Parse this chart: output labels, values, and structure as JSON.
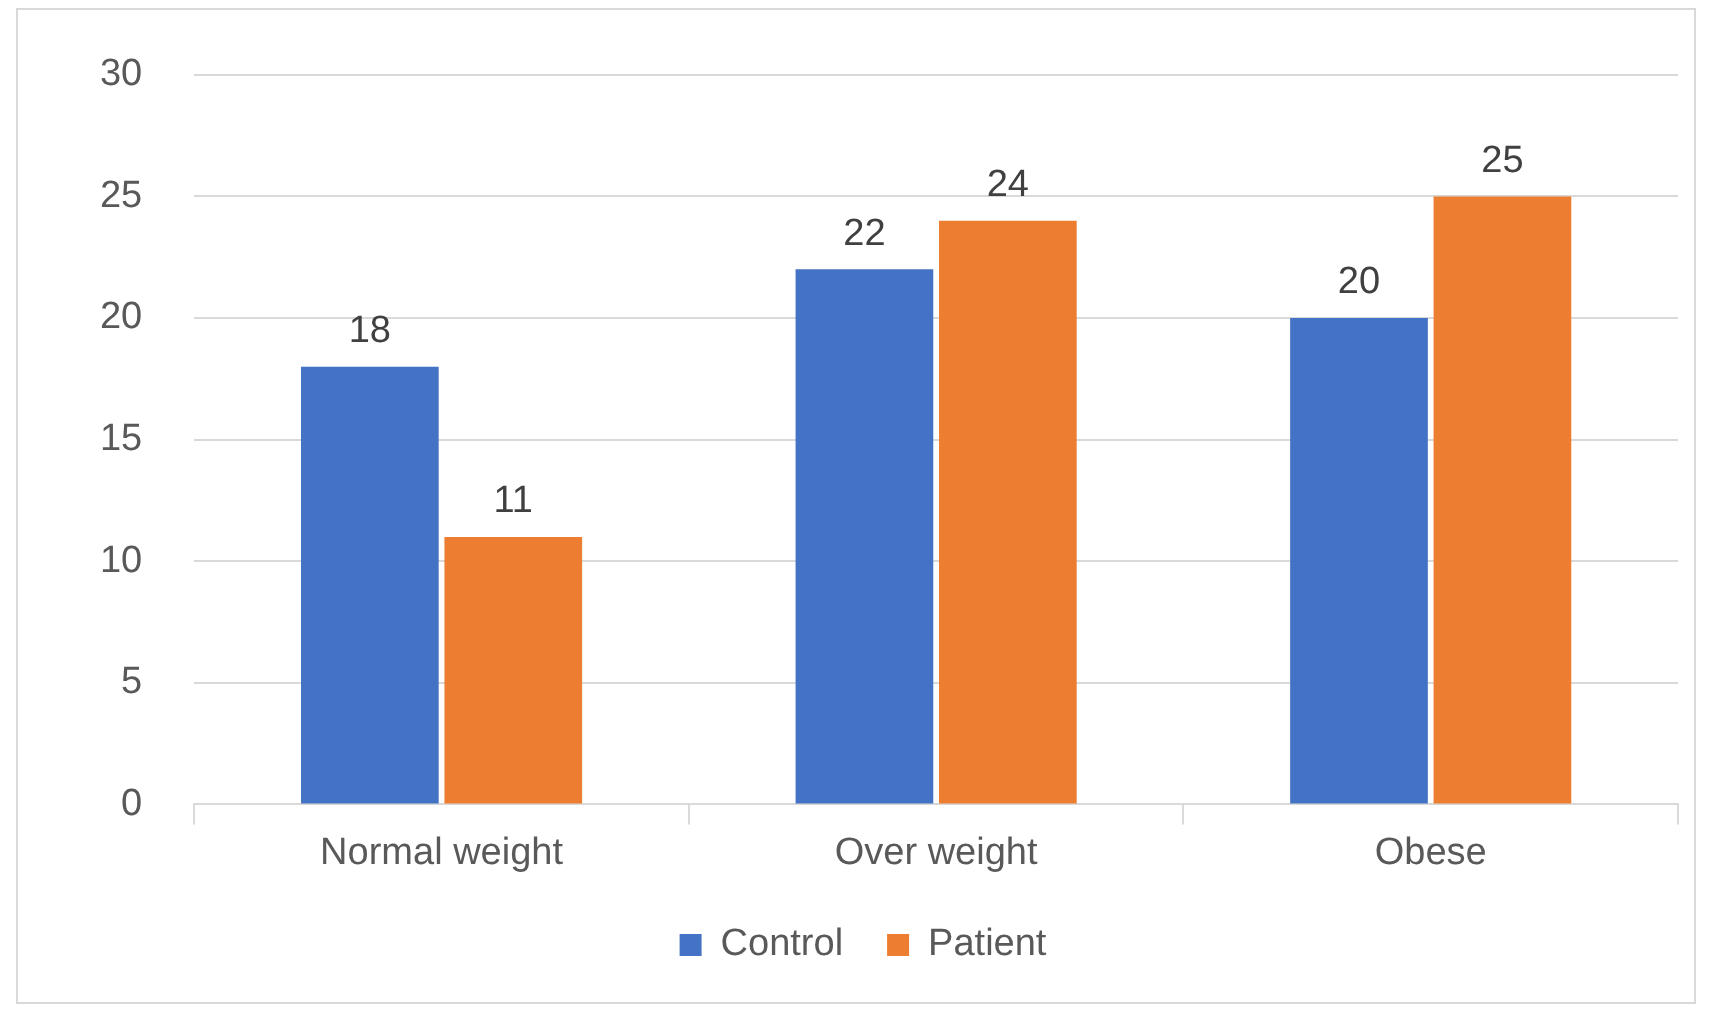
{
  "chart_data": {
    "type": "bar",
    "categories": [
      "Normal weight",
      "Over weight",
      "Obese"
    ],
    "series": [
      {
        "name": "Control",
        "color": "#4472c4",
        "values": [
          18,
          22,
          20
        ]
      },
      {
        "name": "Patient",
        "color": "#ed7d31",
        "values": [
          11,
          24,
          25
        ]
      }
    ],
    "ylim": [
      0,
      30
    ],
    "yticks": [
      0,
      5,
      10,
      15,
      20,
      25,
      30
    ],
    "grid": "y",
    "legend": "bottom",
    "data_labels": true
  }
}
